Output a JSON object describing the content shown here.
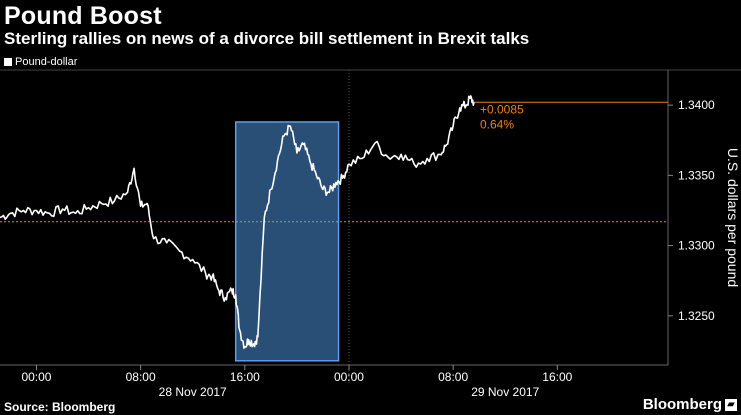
{
  "header": {
    "title": "Pound Boost",
    "subtitle": "Sterling rallies on news of a divorce bill settlement in Brexit talks"
  },
  "footer": {
    "source": "Source: Bloomberg",
    "brand": "Bloomberg"
  },
  "colors": {
    "background": "#000000",
    "line": "#ffffff",
    "reference": "#e8821e",
    "highlight_fill": "#4a90d9",
    "highlight_border": "#5aa0ec"
  },
  "chart_data": {
    "type": "line",
    "title": "Pound Boost",
    "subtitle": "Sterling rallies on news of a divorce bill settlement in Brexit talks",
    "ylabel": "U.S. dollars per pound",
    "ylim": [
      1.3215,
      1.3425
    ],
    "y_ticks": [
      "1.3250",
      "1.3300",
      "1.3350",
      "1.3400"
    ],
    "y_tick_values": [
      1.325,
      1.33,
      1.335,
      1.34
    ],
    "x_tick_labels": [
      "00:00",
      "08:00",
      "16:00",
      "00:00",
      "08:00",
      "16:00"
    ],
    "x_tick_hours": [
      0,
      8,
      16,
      24,
      32,
      40
    ],
    "x_date_labels": [
      {
        "label": "28 Nov 2017",
        "hour": 12
      },
      {
        "label": "29 Nov 2017",
        "hour": 36
      }
    ],
    "xlim_hours": [
      -2.8,
      48.5
    ],
    "grid": false,
    "legend": "top-left",
    "series": [
      {
        "name": "Pound-dollar",
        "x_hours": [
          -2.8,
          -2,
          -1,
          0,
          1,
          2,
          3,
          4,
          5,
          6,
          7,
          7.5,
          8,
          8.5,
          9,
          10,
          11,
          12,
          13,
          13.5,
          14,
          14.5,
          15,
          15.3,
          15.6,
          16,
          16.3,
          16.7,
          17,
          17.5,
          18,
          18.5,
          19,
          19.5,
          20,
          20.5,
          21,
          21.5,
          22,
          22.5,
          23,
          23.5,
          24,
          25,
          26,
          27,
          28,
          29,
          30,
          31,
          31.5,
          32,
          32.5,
          33,
          33.3,
          33.6
        ],
        "values": [
          1.332,
          1.3323,
          1.3325,
          1.3325,
          1.3323,
          1.3326,
          1.3323,
          1.3327,
          1.333,
          1.3332,
          1.3338,
          1.3355,
          1.3328,
          1.333,
          1.3305,
          1.3302,
          1.3296,
          1.329,
          1.328,
          1.3278,
          1.3268,
          1.3263,
          1.3268,
          1.3265,
          1.324,
          1.3228,
          1.3233,
          1.323,
          1.3235,
          1.332,
          1.334,
          1.336,
          1.3378,
          1.3385,
          1.3366,
          1.3372,
          1.336,
          1.335,
          1.334,
          1.3338,
          1.3345,
          1.3348,
          1.3358,
          1.3362,
          1.3373,
          1.3363,
          1.3365,
          1.3358,
          1.3362,
          1.3365,
          1.3372,
          1.3385,
          1.3398,
          1.34,
          1.3405,
          1.3402
        ]
      }
    ],
    "reference_lines": [
      {
        "value": 1.3317,
        "from_hour": -2.8,
        "to_hour": 48.5
      },
      {
        "value": 1.3402,
        "from_hour": 33.6,
        "to_hour": 48.5
      }
    ],
    "annotation": {
      "change": "+0.0085",
      "percent": "0.64%"
    },
    "highlight": {
      "start_hour": 15.3,
      "end_hour": 23.2,
      "ymin": 1.3218,
      "ymax": 1.3388
    }
  }
}
